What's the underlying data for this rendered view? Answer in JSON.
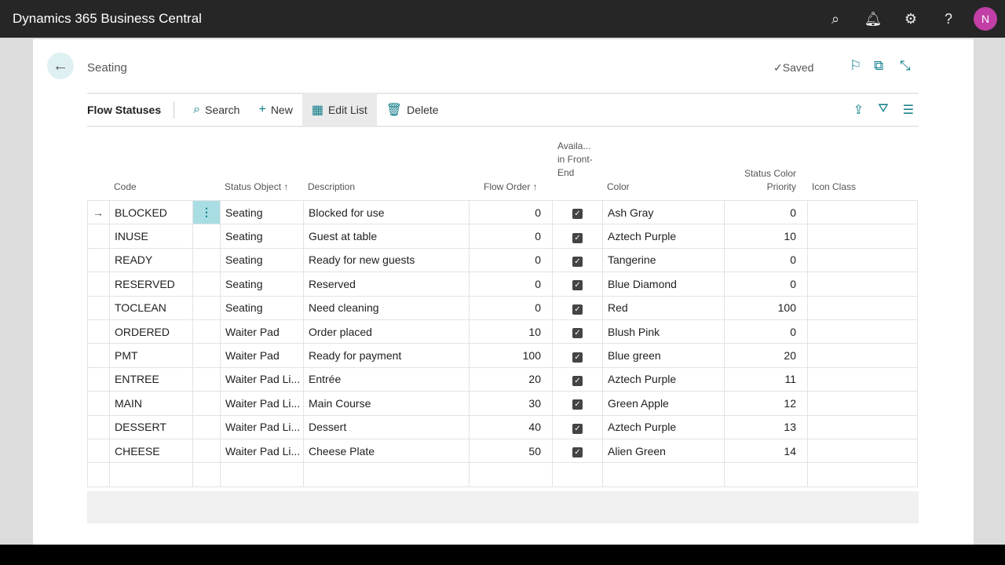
{
  "app": {
    "title": "Dynamics 365 Business Central",
    "avatar_initial": "N",
    "icons": [
      "search-icon",
      "bell-icon",
      "gear-icon",
      "help-icon"
    ]
  },
  "page": {
    "breadcrumb": "Seating",
    "saved": "Saved",
    "name": "Flow Statuses"
  },
  "actions": {
    "search": "Search",
    "new": "New",
    "edit_list": "Edit List",
    "delete": "Delete"
  },
  "columns": {
    "code": "Code",
    "status_object": "Status Object",
    "description": "Description",
    "flow_order": "Flow Order",
    "available": "Availa... in Front-End",
    "color": "Color",
    "priority": "Status Color Priority",
    "icon_class": "Icon Class"
  },
  "rows": [
    {
      "code": "BLOCKED",
      "object": "Seating",
      "description": "Blocked for use",
      "order": "0",
      "available": true,
      "color": "Ash Gray",
      "priority": "0"
    },
    {
      "code": "INUSE",
      "object": "Seating",
      "description": "Guest at table",
      "order": "0",
      "available": true,
      "color": "Aztech Purple",
      "priority": "10"
    },
    {
      "code": "READY",
      "object": "Seating",
      "description": "Ready for new guests",
      "order": "0",
      "available": true,
      "color": "Tangerine",
      "priority": "0"
    },
    {
      "code": "RESERVED",
      "object": "Seating",
      "description": "Reserved",
      "order": "0",
      "available": true,
      "color": "Blue Diamond",
      "priority": "0"
    },
    {
      "code": "TOCLEAN",
      "object": "Seating",
      "description": "Need cleaning",
      "order": "0",
      "available": true,
      "color": "Red",
      "priority": "100"
    },
    {
      "code": "ORDERED",
      "object": "Waiter Pad",
      "description": "Order placed",
      "order": "10",
      "available": true,
      "color": "Blush Pink",
      "priority": "0"
    },
    {
      "code": "PMT",
      "object": "Waiter Pad",
      "description": "Ready for payment",
      "order": "100",
      "available": true,
      "color": "Blue green",
      "priority": "20"
    },
    {
      "code": "ENTREE",
      "object": "Waiter Pad Li...",
      "description": "Entrée",
      "order": "20",
      "available": true,
      "color": "Aztech Purple",
      "priority": "11"
    },
    {
      "code": "MAIN",
      "object": "Waiter Pad Li...",
      "description": "Main Course",
      "order": "30",
      "available": true,
      "color": "Green Apple",
      "priority": "12"
    },
    {
      "code": "DESSERT",
      "object": "Waiter Pad Li...",
      "description": "Dessert",
      "order": "40",
      "available": true,
      "color": "Aztech Purple",
      "priority": "13"
    },
    {
      "code": "CHEESE",
      "object": "Waiter Pad Li...",
      "description": "Cheese Plate",
      "order": "50",
      "available": true,
      "color": "Alien Green",
      "priority": "14"
    }
  ],
  "accent": "#0a7a85"
}
